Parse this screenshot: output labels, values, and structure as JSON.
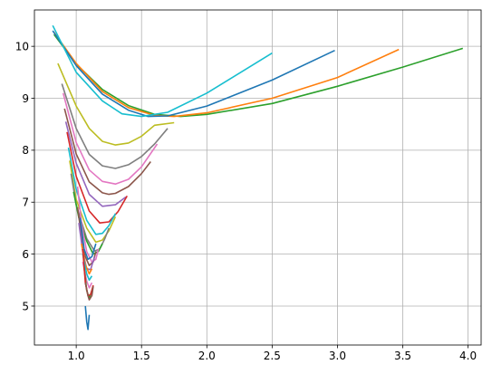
{
  "chart_data": {
    "type": "line",
    "title": "",
    "xlabel": "",
    "ylabel": "",
    "xlim": [
      0.68,
      4.1
    ],
    "ylim": [
      4.25,
      10.7
    ],
    "xticks": [
      1.0,
      1.5,
      2.0,
      2.5,
      3.0,
      3.5,
      4.0
    ],
    "xtick_labels": [
      "1.0",
      "1.5",
      "2.0",
      "2.5",
      "3.0",
      "3.5",
      "4.0"
    ],
    "yticks": [
      5,
      6,
      7,
      8,
      9,
      10
    ],
    "ytick_labels": [
      "5",
      "6",
      "7",
      "8",
      "9",
      "10"
    ],
    "grid": true,
    "legend": "none",
    "series": [
      {
        "color": "#2ca02c",
        "x": [
          0.83,
          1.0,
          1.2,
          1.4,
          1.6,
          1.8,
          2.0,
          2.5,
          3.0,
          3.5,
          3.96
        ],
        "y": [
          10.23,
          9.66,
          9.17,
          8.86,
          8.69,
          8.65,
          8.69,
          8.9,
          9.23,
          9.6,
          9.96
        ]
      },
      {
        "color": "#ff7f0e",
        "x": [
          0.83,
          1.0,
          1.2,
          1.4,
          1.6,
          1.75,
          2.0,
          2.5,
          3.0,
          3.47
        ],
        "y": [
          10.27,
          9.67,
          9.13,
          8.82,
          8.67,
          8.65,
          8.72,
          9.0,
          9.4,
          9.94
        ]
      },
      {
        "color": "#1f77b4",
        "x": [
          0.82,
          1.0,
          1.2,
          1.4,
          1.55,
          1.7,
          2.0,
          2.5,
          2.98
        ],
        "y": [
          10.3,
          9.63,
          9.08,
          8.77,
          8.65,
          8.66,
          8.85,
          9.35,
          9.92
        ]
      },
      {
        "color": "#17becf",
        "x": [
          0.82,
          0.9,
          1.0,
          1.2,
          1.35,
          1.5,
          1.7,
          2.0,
          2.5
        ],
        "y": [
          10.4,
          10.0,
          9.5,
          8.95,
          8.7,
          8.65,
          8.73,
          9.1,
          9.87
        ]
      },
      {
        "color": "#bcbd22",
        "x": [
          0.86,
          1.0,
          1.1,
          1.2,
          1.3,
          1.4,
          1.5,
          1.6,
          1.75
        ],
        "y": [
          9.67,
          8.85,
          8.42,
          8.17,
          8.1,
          8.14,
          8.27,
          8.48,
          8.53
        ]
      },
      {
        "color": "#7f7f7f",
        "x": [
          0.89,
          1.0,
          1.1,
          1.2,
          1.3,
          1.4,
          1.5,
          1.6,
          1.7
        ],
        "y": [
          9.28,
          8.42,
          7.92,
          7.7,
          7.65,
          7.72,
          7.88,
          8.12,
          8.42
        ]
      },
      {
        "color": "#e377c2",
        "x": [
          0.9,
          1.0,
          1.1,
          1.2,
          1.3,
          1.4,
          1.5,
          1.62
        ],
        "y": [
          9.1,
          8.15,
          7.62,
          7.4,
          7.35,
          7.44,
          7.68,
          8.12
        ]
      },
      {
        "color": "#8c564b",
        "x": [
          0.91,
          1.0,
          1.1,
          1.2,
          1.25,
          1.3,
          1.4,
          1.5,
          1.57
        ],
        "y": [
          8.8,
          7.93,
          7.39,
          7.18,
          7.15,
          7.17,
          7.3,
          7.55,
          7.78
        ]
      },
      {
        "color": "#9467bd",
        "x": [
          0.92,
          1.0,
          1.1,
          1.2,
          1.3,
          1.38
        ],
        "y": [
          8.55,
          7.75,
          7.15,
          6.92,
          6.95,
          7.1
        ]
      },
      {
        "color": "#d62728",
        "x": [
          0.93,
          1.0,
          1.1,
          1.18,
          1.25,
          1.32,
          1.39
        ],
        "y": [
          8.35,
          7.5,
          6.83,
          6.6,
          6.62,
          6.82,
          7.12
        ]
      },
      {
        "color": "#17becf",
        "x": [
          0.94,
          1.0,
          1.08,
          1.15,
          1.2,
          1.25,
          1.3
        ],
        "y": [
          8.05,
          7.25,
          6.65,
          6.38,
          6.4,
          6.55,
          6.78
        ]
      },
      {
        "color": "#bcbd22",
        "x": [
          0.95,
          1.0,
          1.08,
          1.15,
          1.2,
          1.25,
          1.3
        ],
        "y": [
          7.8,
          7.05,
          6.5,
          6.23,
          6.27,
          6.45,
          6.72
        ]
      },
      {
        "color": "#7f7f7f",
        "x": [
          0.96,
          1.0,
          1.08,
          1.14,
          1.18,
          1.22,
          1.25
        ],
        "y": [
          7.55,
          6.95,
          6.3,
          6.06,
          6.1,
          6.3,
          6.5
        ]
      },
      {
        "color": "#2ca02c",
        "x": [
          0.98,
          1.02,
          1.08,
          1.13,
          1.17,
          1.2
        ],
        "y": [
          7.2,
          6.7,
          6.25,
          6.0,
          6.05,
          6.2
        ]
      },
      {
        "color": "#e377c2",
        "x": [
          1.01,
          1.04,
          1.08,
          1.12,
          1.15,
          1.17
        ],
        "y": [
          7.3,
          6.6,
          6.05,
          5.85,
          5.9,
          6.1
        ]
      },
      {
        "color": "#8c564b",
        "x": [
          1.01,
          1.04,
          1.07,
          1.1,
          1.13,
          1.15
        ],
        "y": [
          6.9,
          6.35,
          5.95,
          5.78,
          5.85,
          6.05
        ]
      },
      {
        "color": "#9467bd",
        "x": [
          1.02,
          1.05,
          1.08,
          1.11,
          1.14
        ],
        "y": [
          6.6,
          6.05,
          5.72,
          5.7,
          5.95
        ]
      },
      {
        "color": "#1f77b4",
        "x": [
          1.03,
          1.06,
          1.09,
          1.12,
          1.15
        ],
        "y": [
          6.7,
          6.1,
          5.9,
          5.95,
          6.2
        ]
      },
      {
        "color": "#ff7f0e",
        "x": [
          1.04,
          1.07,
          1.1,
          1.12
        ],
        "y": [
          6.2,
          5.8,
          5.62,
          5.72
        ]
      },
      {
        "color": "#17becf",
        "x": [
          1.05,
          1.08,
          1.1,
          1.12
        ],
        "y": [
          6.0,
          5.62,
          5.5,
          5.58
        ]
      },
      {
        "color": "#e377c2",
        "x": [
          1.05,
          1.08,
          1.1,
          1.12
        ],
        "y": [
          5.85,
          5.48,
          5.35,
          5.45
        ]
      },
      {
        "color": "#2ca02c",
        "x": [
          1.06,
          1.08,
          1.1,
          1.12
        ],
        "y": [
          5.75,
          5.3,
          5.15,
          5.3
        ]
      },
      {
        "color": "#d62728",
        "x": [
          1.05,
          1.07,
          1.09,
          1.11,
          1.13
        ],
        "y": [
          6.1,
          5.45,
          5.2,
          5.22,
          5.4
        ]
      },
      {
        "color": "#8c564b",
        "x": [
          1.07,
          1.09,
          1.1,
          1.12,
          1.13
        ],
        "y": [
          5.45,
          5.2,
          5.12,
          5.2,
          5.38
        ]
      },
      {
        "color": "#1f77b4",
        "x": [
          1.07,
          1.08,
          1.09,
          1.1
        ],
        "y": [
          5.0,
          4.7,
          4.55,
          4.83
        ]
      }
    ]
  }
}
